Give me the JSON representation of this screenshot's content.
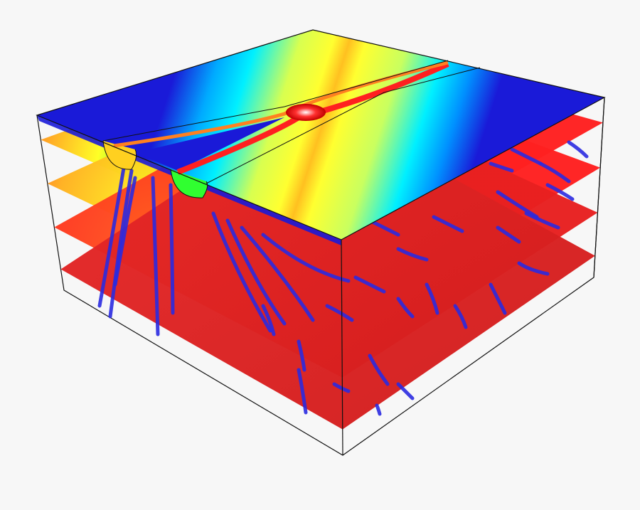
{
  "scene": {
    "background": "#f7f7f7",
    "edge_color": "#111111",
    "colormap": [
      "#1a1ad8",
      "#00e8ff",
      "#ffff30",
      "#ff2020",
      "#c80000"
    ],
    "plane_colors": {
      "hot": "#ff2a2a",
      "warm": "#ffd000",
      "mid": "#30ff30"
    },
    "streamline_color": "#2a2ae0",
    "slice_levels": [
      0.14,
      0.39,
      0.64,
      0.88
    ]
  }
}
